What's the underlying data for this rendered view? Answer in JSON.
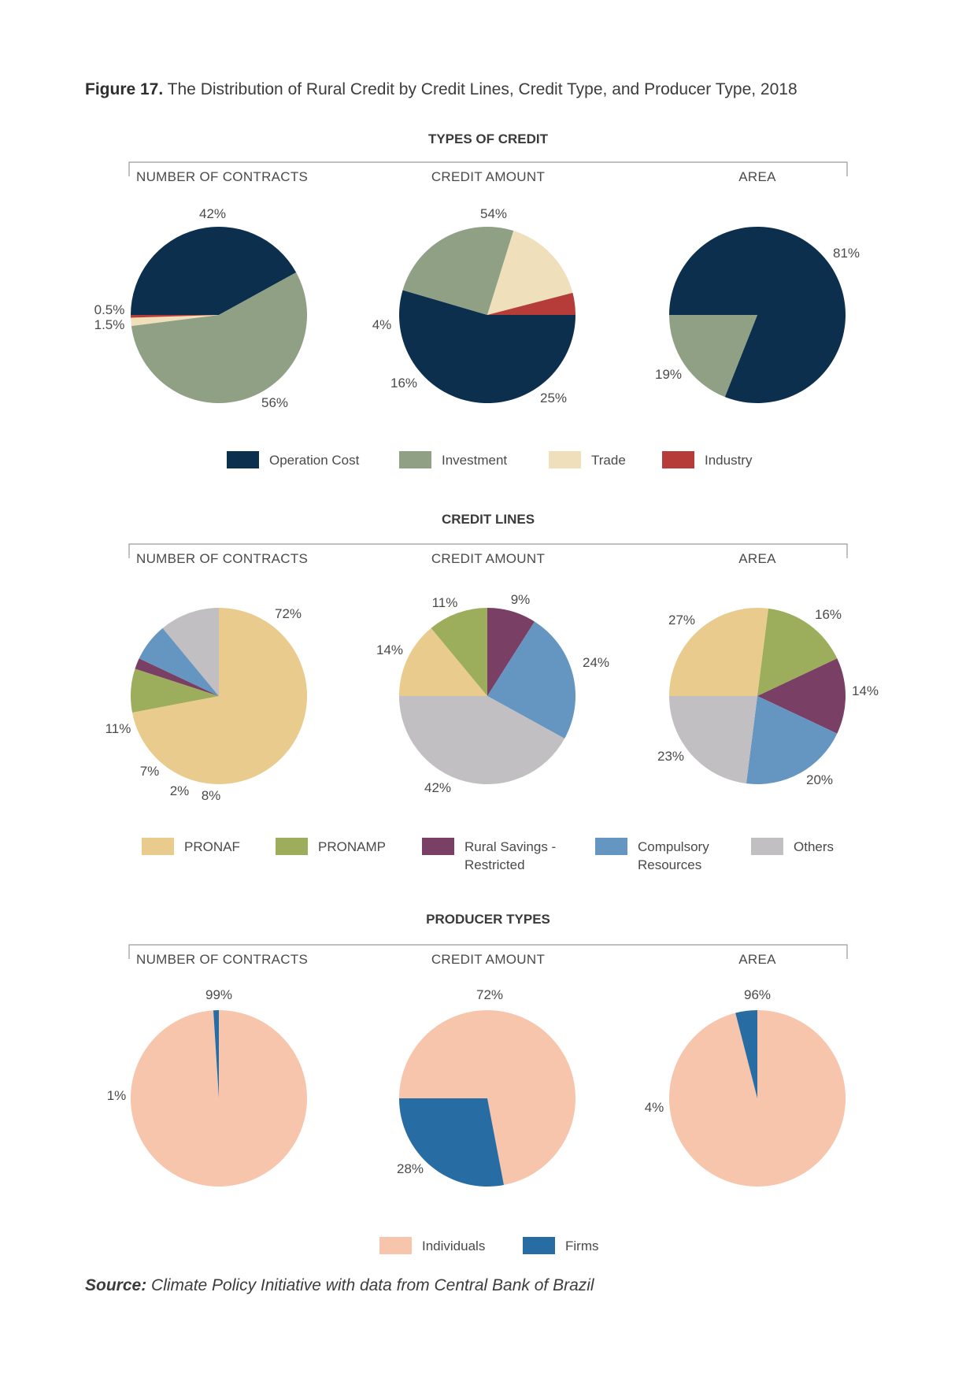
{
  "figure": {
    "number": "Figure 17.",
    "title": "The Distribution of Rural Credit by Credit Lines, Credit Type, and Producer Type, 2018"
  },
  "source": {
    "label": "Source:",
    "text": "Climate Policy Initiative with data from Central Bank of Brazil"
  },
  "chart_data": [
    {
      "type": "pie",
      "group": "TYPES OF CREDIT",
      "title": "NUMBER OF CONTRACTS",
      "categories": [
        "Operation Cost",
        "Investment",
        "Trade",
        "Industry"
      ],
      "values": [
        42,
        56,
        1.5,
        0.5
      ],
      "labels": [
        "42%",
        "56%",
        "1.5%",
        "0.5%"
      ]
    },
    {
      "type": "pie",
      "group": "TYPES OF CREDIT",
      "title": "CREDIT AMOUNT",
      "categories": [
        "Operation Cost",
        "Investment",
        "Trade",
        "Industry"
      ],
      "values": [
        54,
        25,
        16,
        4
      ],
      "labels": [
        "54%",
        "25%",
        "16%",
        "4%"
      ]
    },
    {
      "type": "pie",
      "group": "TYPES OF CREDIT",
      "title": "AREA",
      "categories": [
        "Operation Cost",
        "Investment"
      ],
      "values": [
        81,
        19
      ],
      "labels": [
        "81%",
        "19%"
      ]
    },
    {
      "type": "pie",
      "group": "CREDIT LINES",
      "title": "NUMBER OF CONTRACTS",
      "categories": [
        "PRONAF",
        "PRONAMP",
        "Rural Savings - Restricted",
        "Compulsory Resources",
        "Others"
      ],
      "values": [
        72,
        8,
        2,
        7,
        11
      ],
      "labels": [
        "72%",
        "8%",
        "2%",
        "7%",
        "11%"
      ]
    },
    {
      "type": "pie",
      "group": "CREDIT LINES",
      "title": "CREDIT AMOUNT",
      "categories": [
        "PRONAF",
        "PRONAMP",
        "Rural Savings - Restricted",
        "Compulsory Resources",
        "Others"
      ],
      "values": [
        14,
        11,
        9,
        24,
        42
      ],
      "labels": [
        "14%",
        "11%",
        "9%",
        "24%",
        "42%"
      ]
    },
    {
      "type": "pie",
      "group": "CREDIT LINES",
      "title": "AREA",
      "categories": [
        "PRONAF",
        "PRONAMP",
        "Rural Savings - Restricted",
        "Compulsory Resources",
        "Others"
      ],
      "values": [
        27,
        16,
        14,
        20,
        23
      ],
      "labels": [
        "27%",
        "16%",
        "14%",
        "20%",
        "23%"
      ]
    },
    {
      "type": "pie",
      "group": "PRODUCER TYPES",
      "title": "NUMBER OF CONTRACTS",
      "categories": [
        "Individuals",
        "Firms"
      ],
      "values": [
        99,
        1
      ],
      "labels": [
        "99%",
        "1%"
      ]
    },
    {
      "type": "pie",
      "group": "PRODUCER TYPES",
      "title": "CREDIT AMOUNT",
      "categories": [
        "Individuals",
        "Firms"
      ],
      "values": [
        72,
        28
      ],
      "labels": [
        "72%",
        "28%"
      ]
    },
    {
      "type": "pie",
      "group": "PRODUCER TYPES",
      "title": "AREA",
      "categories": [
        "Individuals",
        "Firms"
      ],
      "values": [
        96,
        4
      ],
      "labels": [
        "96%",
        "4%"
      ]
    }
  ],
  "sections": [
    {
      "title": "TYPES OF CREDIT",
      "subtitles": [
        "NUMBER OF CONTRACTS",
        "CREDIT AMOUNT",
        "AREA"
      ],
      "legend": [
        {
          "lines": [
            "Operation Cost"
          ],
          "color": "#0c2f4e"
        },
        {
          "lines": [
            "Investment"
          ],
          "color": "#8fa085"
        },
        {
          "lines": [
            "Trade"
          ],
          "color": "#efdfba"
        },
        {
          "lines": [
            "Industry"
          ],
          "color": "#b53c38"
        }
      ]
    },
    {
      "title": "CREDIT LINES",
      "subtitles": [
        "NUMBER OF CONTRACTS",
        "CREDIT AMOUNT",
        "AREA"
      ],
      "legend": [
        {
          "lines": [
            "PRONAF"
          ],
          "color": "#e9cb8d"
        },
        {
          "lines": [
            "PRONAMP"
          ],
          "color": "#9cad5c"
        },
        {
          "lines": [
            "Rural Savings -",
            "Restricted"
          ],
          "color": "#7a3f65"
        },
        {
          "lines": [
            "Compulsory",
            "Resources"
          ],
          "color": "#6496c1"
        },
        {
          "lines": [
            "Others"
          ],
          "color": "#c1bfc1"
        }
      ]
    },
    {
      "title": "PRODUCER TYPES",
      "subtitles": [
        "NUMBER OF CONTRACTS",
        "CREDIT AMOUNT",
        "AREA"
      ],
      "legend": [
        {
          "lines": [
            "Individuals"
          ],
          "color": "#f7c5ac"
        },
        {
          "lines": [
            "Firms"
          ],
          "color": "#276da4"
        }
      ]
    }
  ]
}
